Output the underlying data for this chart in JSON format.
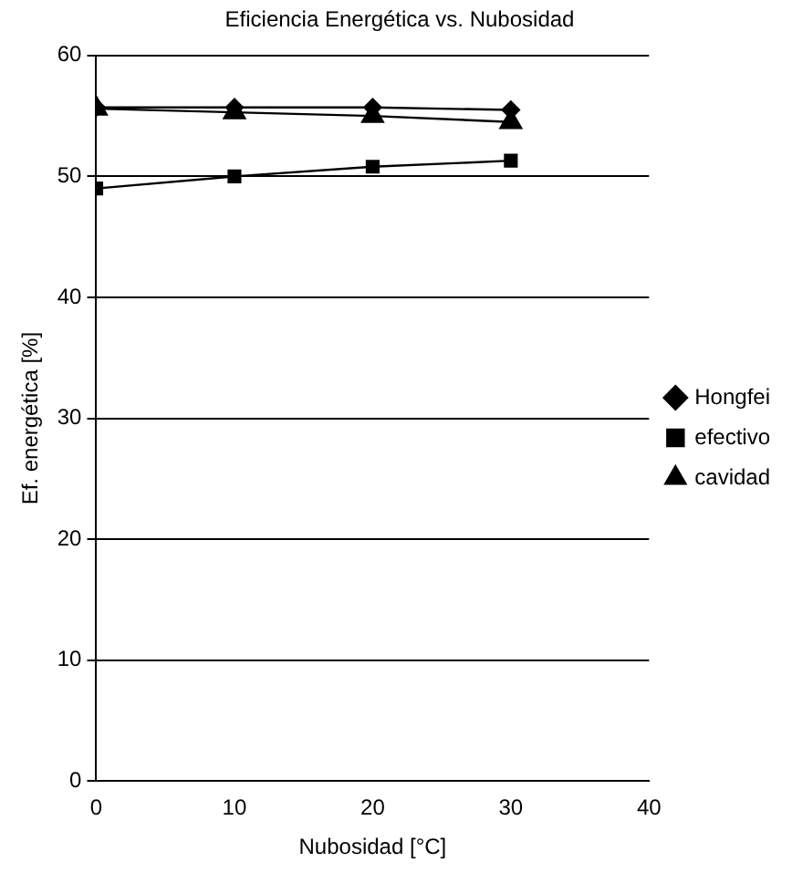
{
  "chart_data": {
    "type": "line",
    "title": "Eficiencia Energética vs. Nubosidad",
    "xlabel": "Nubosidad [°C]",
    "ylabel": "Ef. energética [%]",
    "x": [
      0,
      10,
      20,
      30
    ],
    "series": [
      {
        "name": "Hongfei",
        "color": "#000000",
        "marker": "diamond",
        "values": [
          55.7,
          55.7,
          55.7,
          55.5
        ]
      },
      {
        "name": "efectivo",
        "color": "#000000",
        "marker": "square",
        "values": [
          49,
          50,
          50.8,
          51.3
        ]
      },
      {
        "name": "cavidad",
        "color": "#000000",
        "marker": "triangle",
        "values": [
          55.6,
          55.3,
          55,
          54.5
        ]
      }
    ],
    "xlim": [
      0,
      40
    ],
    "xticks": [
      0,
      10,
      20,
      30,
      40
    ],
    "ylim": [
      0,
      60
    ],
    "yticks": [
      0,
      10,
      20,
      30,
      40,
      50,
      60
    ],
    "grid": "y",
    "legend": "right"
  }
}
